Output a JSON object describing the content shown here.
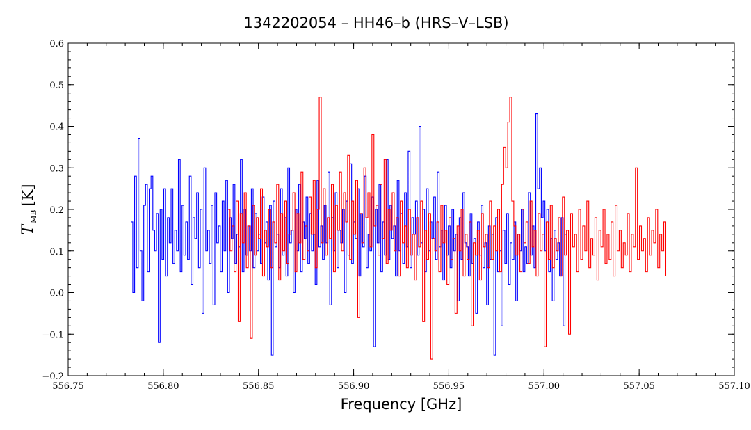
{
  "chart_data": {
    "type": "line",
    "title": "1342202054 – HH46–b (HRS–V–LSB)",
    "xlabel": "Frequency [GHz]",
    "ylabel": {
      "symbol": "T",
      "subscript": "MB",
      "unit": "[K]"
    },
    "xlim": [
      556.75,
      557.1
    ],
    "ylim": [
      -0.2,
      0.6
    ],
    "x_ticks": [
      "556.75",
      "556.80",
      "556.85",
      "556.90",
      "556.95",
      "557.00",
      "557.05",
      "557.10"
    ],
    "y_ticks": [
      "−0.2",
      "−0.1",
      "0.0",
      "0.1",
      "0.2",
      "0.3",
      "0.4",
      "0.5",
      "0.6"
    ],
    "grid": false,
    "legend": "none",
    "series": [
      {
        "color": "#0000ff",
        "x_start": 556.783,
        "x_end": 557.012,
        "values": [
          0.17,
          0.0,
          0.28,
          0.06,
          0.37,
          0.1,
          -0.02,
          0.21,
          0.26,
          0.05,
          0.25,
          0.28,
          0.15,
          0.1,
          0.19,
          -0.12,
          0.2,
          0.08,
          0.25,
          0.04,
          0.18,
          0.12,
          0.25,
          0.07,
          0.15,
          0.1,
          0.32,
          0.05,
          0.21,
          0.09,
          0.17,
          0.08,
          0.28,
          0.02,
          0.18,
          0.13,
          0.24,
          0.06,
          0.2,
          -0.05,
          0.3,
          0.1,
          0.15,
          0.07,
          0.21,
          -0.03,
          0.24,
          0.12,
          0.16,
          0.05,
          0.22,
          0.1,
          0.27,
          0.0,
          0.18,
          0.13,
          0.26,
          0.07,
          0.14,
          0.11,
          0.32,
          0.05,
          0.2,
          0.09,
          0.16,
          0.1,
          0.25,
          0.06,
          0.19,
          0.1,
          0.14,
          0.07,
          0.23,
          0.12,
          0.17,
          0.03,
          0.21,
          -0.15,
          0.22,
          0.11,
          0.14,
          0.06,
          0.25,
          0.09,
          0.18,
          0.04,
          0.3,
          0.12,
          0.15,
          0.0,
          0.2,
          0.1,
          0.26,
          0.05,
          0.17,
          0.13,
          0.23,
          0.07,
          0.19,
          0.1,
          0.14,
          0.02,
          0.27,
          0.11,
          0.16,
          0.08,
          0.21,
          0.12,
          0.29,
          -0.03,
          0.18,
          0.1,
          0.24,
          0.06,
          0.15,
          0.12,
          0.2,
          0.0,
          0.22,
          0.09,
          0.31,
          0.07,
          0.17,
          0.13,
          0.25,
          0.04,
          0.19,
          0.11,
          0.28,
          0.06,
          0.14,
          0.1,
          0.23,
          -0.13,
          0.2,
          0.12,
          0.26,
          0.05,
          0.17,
          0.09,
          0.32,
          0.08,
          0.21,
          0.13,
          0.16,
          0.04,
          0.27,
          0.1,
          0.19,
          0.07,
          0.24,
          0.11,
          0.34,
          0.06,
          0.18,
          0.14,
          0.22,
          0.09,
          0.4,
          0.12,
          0.2,
          0.05,
          0.25,
          0.1,
          0.17,
          0.13,
          0.23,
          0.08,
          0.29,
          0.11,
          0.15,
          0.03,
          0.21,
          0.09,
          0.16,
          0.06,
          0.2,
          0.1,
          0.14,
          -0.02,
          0.18,
          0.08,
          0.24,
          0.12,
          0.11,
          0.04,
          0.19,
          0.07,
          0.13,
          -0.05,
          0.17,
          0.09,
          0.21,
          0.06,
          0.12,
          -0.03,
          0.16,
          0.08,
          0.14,
          -0.15,
          0.18,
          0.05,
          0.1,
          -0.08,
          0.15,
          0.07,
          0.19,
          0.02,
          0.12,
          0.08,
          0.17,
          -0.02,
          0.14,
          0.1,
          0.2,
          0.05,
          0.11,
          0.07,
          0.24,
          0.09,
          0.16,
          0.06,
          0.43,
          0.25,
          0.3,
          0.18,
          0.22,
          0.1,
          0.2,
          0.05,
          0.13,
          -0.02,
          0.15,
          0.08,
          0.12,
          0.04,
          0.18,
          -0.08,
          0.14,
          0.09
        ]
      },
      {
        "color": "#ff0000",
        "x_start": 556.834,
        "x_end": 557.064,
        "values": [
          0.2,
          0.1,
          0.16,
          0.05,
          0.22,
          -0.07,
          0.19,
          0.12,
          0.24,
          0.06,
          0.16,
          -0.11,
          0.21,
          0.09,
          0.18,
          0.13,
          0.25,
          0.04,
          0.15,
          0.11,
          0.2,
          0.06,
          0.17,
          0.12,
          0.26,
          0.03,
          0.19,
          0.1,
          0.22,
          0.07,
          0.14,
          0.15,
          0.24,
          0.05,
          0.19,
          0.12,
          0.29,
          0.08,
          0.16,
          0.1,
          0.23,
          0.14,
          0.27,
          0.06,
          0.2,
          0.47,
          0.12,
          0.25,
          0.09,
          0.18,
          0.13,
          0.26,
          0.05,
          0.21,
          0.15,
          0.29,
          0.1,
          0.24,
          0.17,
          0.33,
          0.08,
          0.22,
          0.14,
          0.27,
          -0.06,
          0.19,
          0.12,
          0.3,
          0.18,
          0.24,
          0.11,
          0.38,
          0.16,
          0.21,
          0.09,
          0.26,
          0.13,
          0.32,
          0.07,
          0.2,
          0.15,
          0.24,
          0.1,
          0.18,
          0.04,
          0.22,
          0.12,
          0.16,
          0.06,
          0.2,
          0.09,
          0.14,
          0.03,
          0.18,
          0.11,
          0.22,
          -0.07,
          0.15,
          0.08,
          0.19,
          -0.16,
          0.13,
          0.1,
          0.17,
          0.05,
          0.21,
          0.12,
          0.15,
          0.02,
          0.18,
          0.08,
          0.13,
          -0.05,
          0.16,
          0.1,
          0.2,
          0.04,
          0.14,
          0.08,
          0.17,
          -0.08,
          0.12,
          0.09,
          0.15,
          0.03,
          0.19,
          0.11,
          0.14,
          0.06,
          0.22,
          0.08,
          0.16,
          0.1,
          0.2,
          0.05,
          0.26,
          0.35,
          0.3,
          0.41,
          0.47,
          0.22,
          0.16,
          0.09,
          0.14,
          0.05,
          0.2,
          0.12,
          0.17,
          0.07,
          0.22,
          0.11,
          0.15,
          0.04,
          0.19,
          0.1,
          0.14,
          -0.13,
          0.17,
          0.08,
          0.21,
          0.06,
          0.13,
          0.1,
          0.18,
          0.04,
          0.23,
          0.09,
          0.15,
          -0.1,
          0.19,
          0.11,
          0.14,
          0.05,
          0.2,
          0.08,
          0.16,
          0.1,
          0.22,
          0.06,
          0.13,
          0.09,
          0.18,
          0.03,
          0.15,
          0.11,
          0.2,
          0.07,
          0.14,
          0.08,
          0.17,
          0.04,
          0.21,
          0.1,
          0.15,
          0.06,
          0.12,
          0.09,
          0.19,
          0.05,
          0.14,
          0.11,
          0.3,
          0.08,
          0.16,
          0.1,
          0.13,
          0.05,
          0.18,
          0.09,
          0.15,
          0.12,
          0.2,
          0.06,
          0.14,
          0.1,
          0.17,
          0.04
        ]
      }
    ]
  }
}
